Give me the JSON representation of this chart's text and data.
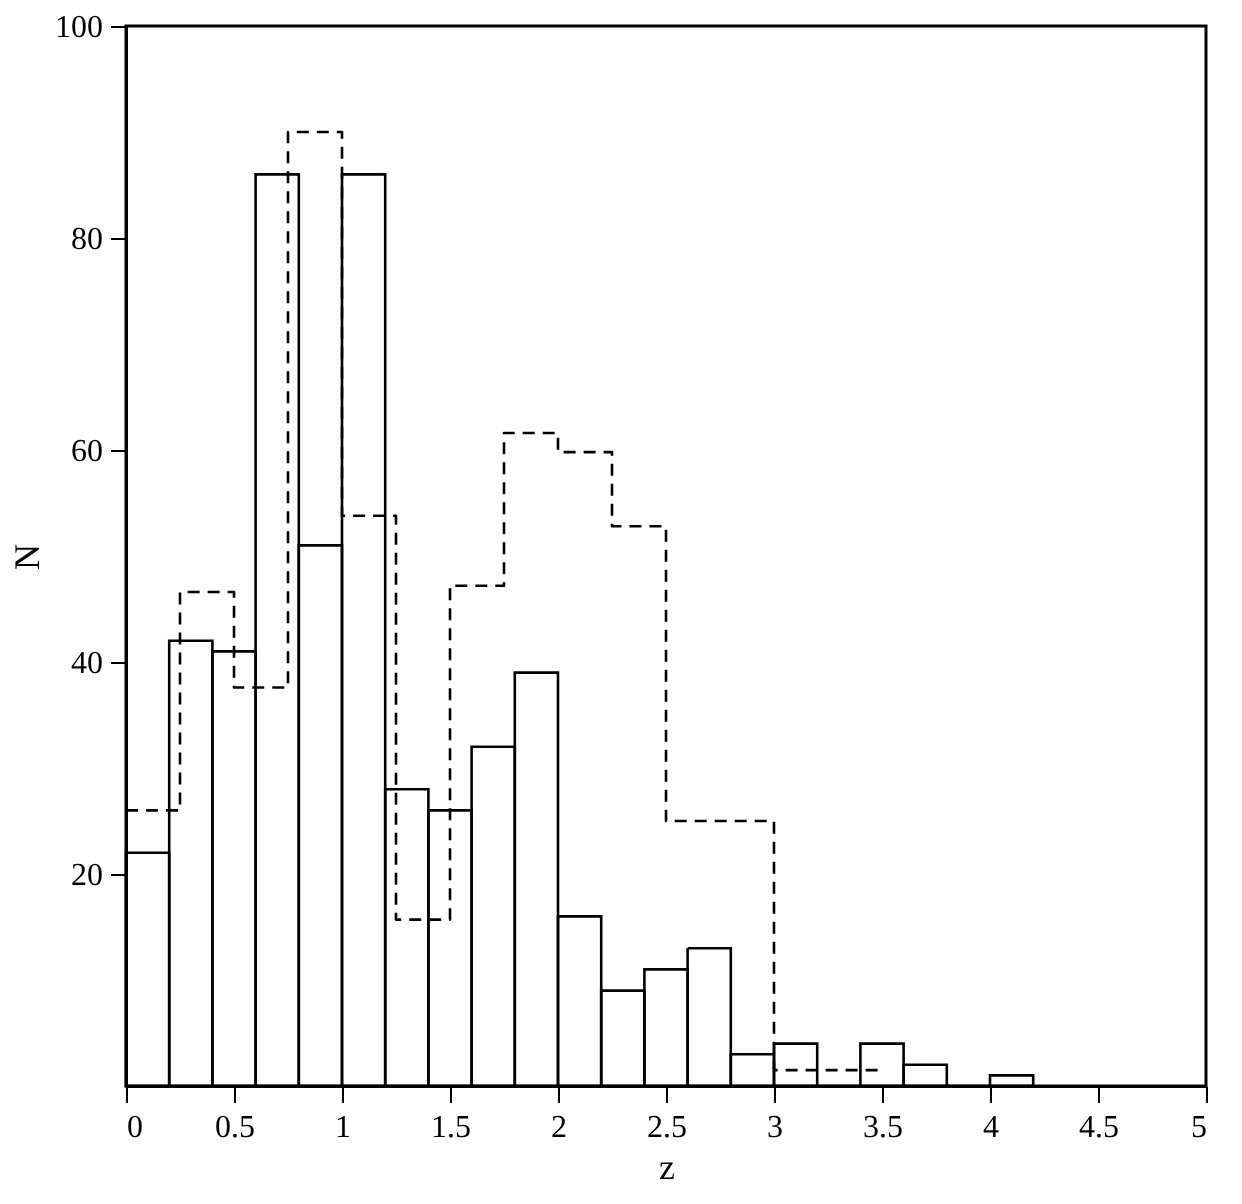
{
  "chart_data": {
    "type": "histogram",
    "xlabel": "z",
    "ylabel": "N",
    "xlim": [
      0,
      5
    ],
    "xticks": [
      0,
      0.5,
      1,
      1.5,
      2,
      2.5,
      3,
      3.5,
      4,
      4.5,
      5
    ],
    "ylim": [
      0,
      100
    ],
    "yticks": [
      20,
      40,
      60,
      80,
      100
    ],
    "grid": false,
    "bins": [
      0,
      0.2,
      0.4,
      0.6,
      0.8,
      1.0,
      1.2,
      1.4,
      1.6,
      1.8,
      2.0,
      2.2,
      2.4,
      2.6,
      2.8,
      3.0,
      3.2,
      3.4,
      3.6,
      3.8,
      4.0,
      4.2
    ],
    "series": [
      {
        "color": "#000000",
        "values": [
          22,
          42,
          41,
          86,
          51,
          86,
          28,
          26,
          32,
          39,
          16,
          9,
          11,
          13,
          3,
          4,
          0,
          4,
          2,
          0,
          1
        ]
      },
      {
        "type": "step",
        "color": "#000000",
        "line_style": "dashed",
        "x": [
          0,
          0.25,
          0.5,
          0.75,
          1.0,
          1.25,
          1.5,
          1.75,
          2.0,
          2.25,
          2.5,
          2.75,
          3.0,
          3.25,
          3.5
        ],
        "values": [
          26,
          46.6,
          37.6,
          90,
          53.8,
          15.7,
          47.2,
          61.6,
          59.8,
          52.8,
          25,
          25,
          1.5,
          1.5,
          1.5
        ]
      }
    ]
  }
}
